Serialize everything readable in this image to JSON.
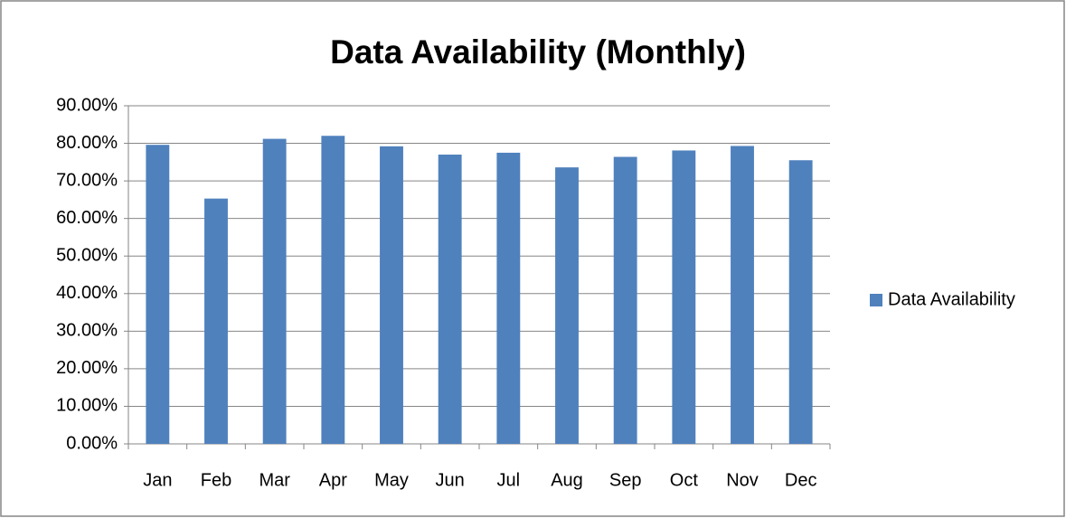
{
  "chart_data": {
    "type": "bar",
    "title": "Data Availability (Monthly)",
    "categories": [
      "Jan",
      "Feb",
      "Mar",
      "Apr",
      "May",
      "Jun",
      "Jul",
      "Aug",
      "Sep",
      "Oct",
      "Nov",
      "Dec"
    ],
    "series": [
      {
        "name": "Data Availability",
        "color": "#4f81bd",
        "values": [
          79.6,
          65.3,
          81.2,
          82.0,
          79.2,
          77.0,
          77.5,
          73.6,
          76.4,
          78.1,
          79.3,
          75.5
        ]
      }
    ],
    "ylim": [
      0,
      90
    ],
    "yticks": [
      {
        "value": 0,
        "label": "0.00%"
      },
      {
        "value": 10,
        "label": "10.00%"
      },
      {
        "value": 20,
        "label": "20.00%"
      },
      {
        "value": 30,
        "label": "30.00%"
      },
      {
        "value": 40,
        "label": "40.00%"
      },
      {
        "value": 50,
        "label": "50.00%"
      },
      {
        "value": 60,
        "label": "60.00%"
      },
      {
        "value": 70,
        "label": "70.00%"
      },
      {
        "value": 80,
        "label": "80.00%"
      },
      {
        "value": 90,
        "label": "90.00%"
      }
    ],
    "grid": true,
    "legend": "right"
  }
}
